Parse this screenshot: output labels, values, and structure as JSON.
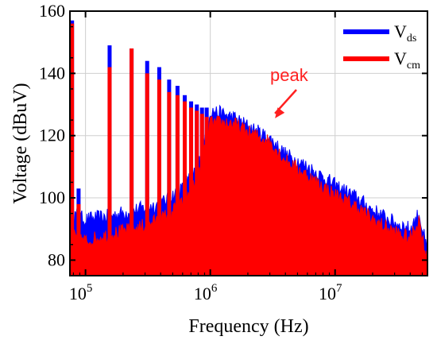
{
  "chart_data": {
    "type": "line",
    "xlabel": "Frequency (Hz)",
    "ylabel": "Voltage (dBuV)",
    "x_scale": "log",
    "xlim": [
      75000,
      55000000
    ],
    "ylim": [
      75,
      160
    ],
    "y_ticks": [
      80,
      100,
      120,
      140,
      160
    ],
    "x_ticks": [
      {
        "value": 100000,
        "base": "10",
        "exp": "5"
      },
      {
        "value": 1000000,
        "base": "10",
        "exp": "6"
      },
      {
        "value": 10000000,
        "base": "10",
        "exp": "7"
      }
    ],
    "grid": true,
    "legend_position": "top-right",
    "series": [
      {
        "name": "V",
        "name_sub": "ds",
        "color": "#0000ff",
        "peaks": [
          {
            "x": 78000,
            "y": 157
          },
          {
            "x": 88000,
            "y": 103
          },
          {
            "x": 156000,
            "y": 149
          },
          {
            "x": 234000,
            "y": 148
          },
          {
            "x": 312000,
            "y": 144
          },
          {
            "x": 390000,
            "y": 142
          },
          {
            "x": 468000,
            "y": 138
          },
          {
            "x": 546000,
            "y": 136
          },
          {
            "x": 624000,
            "y": 133
          },
          {
            "x": 702000,
            "y": 131
          },
          {
            "x": 780000,
            "y": 130
          },
          {
            "x": 858000,
            "y": 129
          },
          {
            "x": 936000,
            "y": 129
          }
        ],
        "envelope": [
          {
            "x": 75000,
            "y": 95
          },
          {
            "x": 100000,
            "y": 93
          },
          {
            "x": 150000,
            "y": 94
          },
          {
            "x": 250000,
            "y": 96
          },
          {
            "x": 400000,
            "y": 98
          },
          {
            "x": 600000,
            "y": 103
          },
          {
            "x": 800000,
            "y": 110
          },
          {
            "x": 1000000,
            "y": 128
          },
          {
            "x": 1500000,
            "y": 126
          },
          {
            "x": 2000000,
            "y": 123
          },
          {
            "x": 3000000,
            "y": 119
          },
          {
            "x": 4000000,
            "y": 114
          },
          {
            "x": 6000000,
            "y": 110
          },
          {
            "x": 10000000,
            "y": 104
          },
          {
            "x": 15000000,
            "y": 100
          },
          {
            "x": 20000000,
            "y": 96
          },
          {
            "x": 30000000,
            "y": 92
          },
          {
            "x": 40000000,
            "y": 90
          },
          {
            "x": 47000000,
            "y": 95
          },
          {
            "x": 52000000,
            "y": 87
          },
          {
            "x": 55000000,
            "y": 82
          }
        ]
      },
      {
        "name": "V",
        "name_sub": "cm",
        "color": "#ff0000",
        "peaks": [
          {
            "x": 78000,
            "y": 156
          },
          {
            "x": 88000,
            "y": 98
          },
          {
            "x": 156000,
            "y": 142
          },
          {
            "x": 234000,
            "y": 148
          },
          {
            "x": 312000,
            "y": 140
          },
          {
            "x": 390000,
            "y": 138
          },
          {
            "x": 468000,
            "y": 134
          },
          {
            "x": 546000,
            "y": 133
          },
          {
            "x": 624000,
            "y": 131
          },
          {
            "x": 702000,
            "y": 129
          },
          {
            "x": 780000,
            "y": 128
          },
          {
            "x": 858000,
            "y": 127
          },
          {
            "x": 936000,
            "y": 126
          }
        ],
        "envelope": [
          {
            "x": 75000,
            "y": 88
          },
          {
            "x": 100000,
            "y": 86
          },
          {
            "x": 150000,
            "y": 88
          },
          {
            "x": 250000,
            "y": 90
          },
          {
            "x": 400000,
            "y": 93
          },
          {
            "x": 600000,
            "y": 98
          },
          {
            "x": 800000,
            "y": 106
          },
          {
            "x": 1000000,
            "y": 124
          },
          {
            "x": 1500000,
            "y": 124
          },
          {
            "x": 2000000,
            "y": 121
          },
          {
            "x": 3000000,
            "y": 118
          },
          {
            "x": 4000000,
            "y": 112
          },
          {
            "x": 6000000,
            "y": 107
          },
          {
            "x": 10000000,
            "y": 101
          },
          {
            "x": 15000000,
            "y": 97
          },
          {
            "x": 20000000,
            "y": 93
          },
          {
            "x": 30000000,
            "y": 89
          },
          {
            "x": 40000000,
            "y": 87
          },
          {
            "x": 47000000,
            "y": 93
          },
          {
            "x": 52000000,
            "y": 84
          },
          {
            "x": 55000000,
            "y": 80
          }
        ]
      }
    ],
    "annotations": [
      {
        "text": "peak",
        "color": "#ff2020",
        "arrow_to": {
          "x": 3300000,
          "y": 122
        }
      }
    ]
  }
}
